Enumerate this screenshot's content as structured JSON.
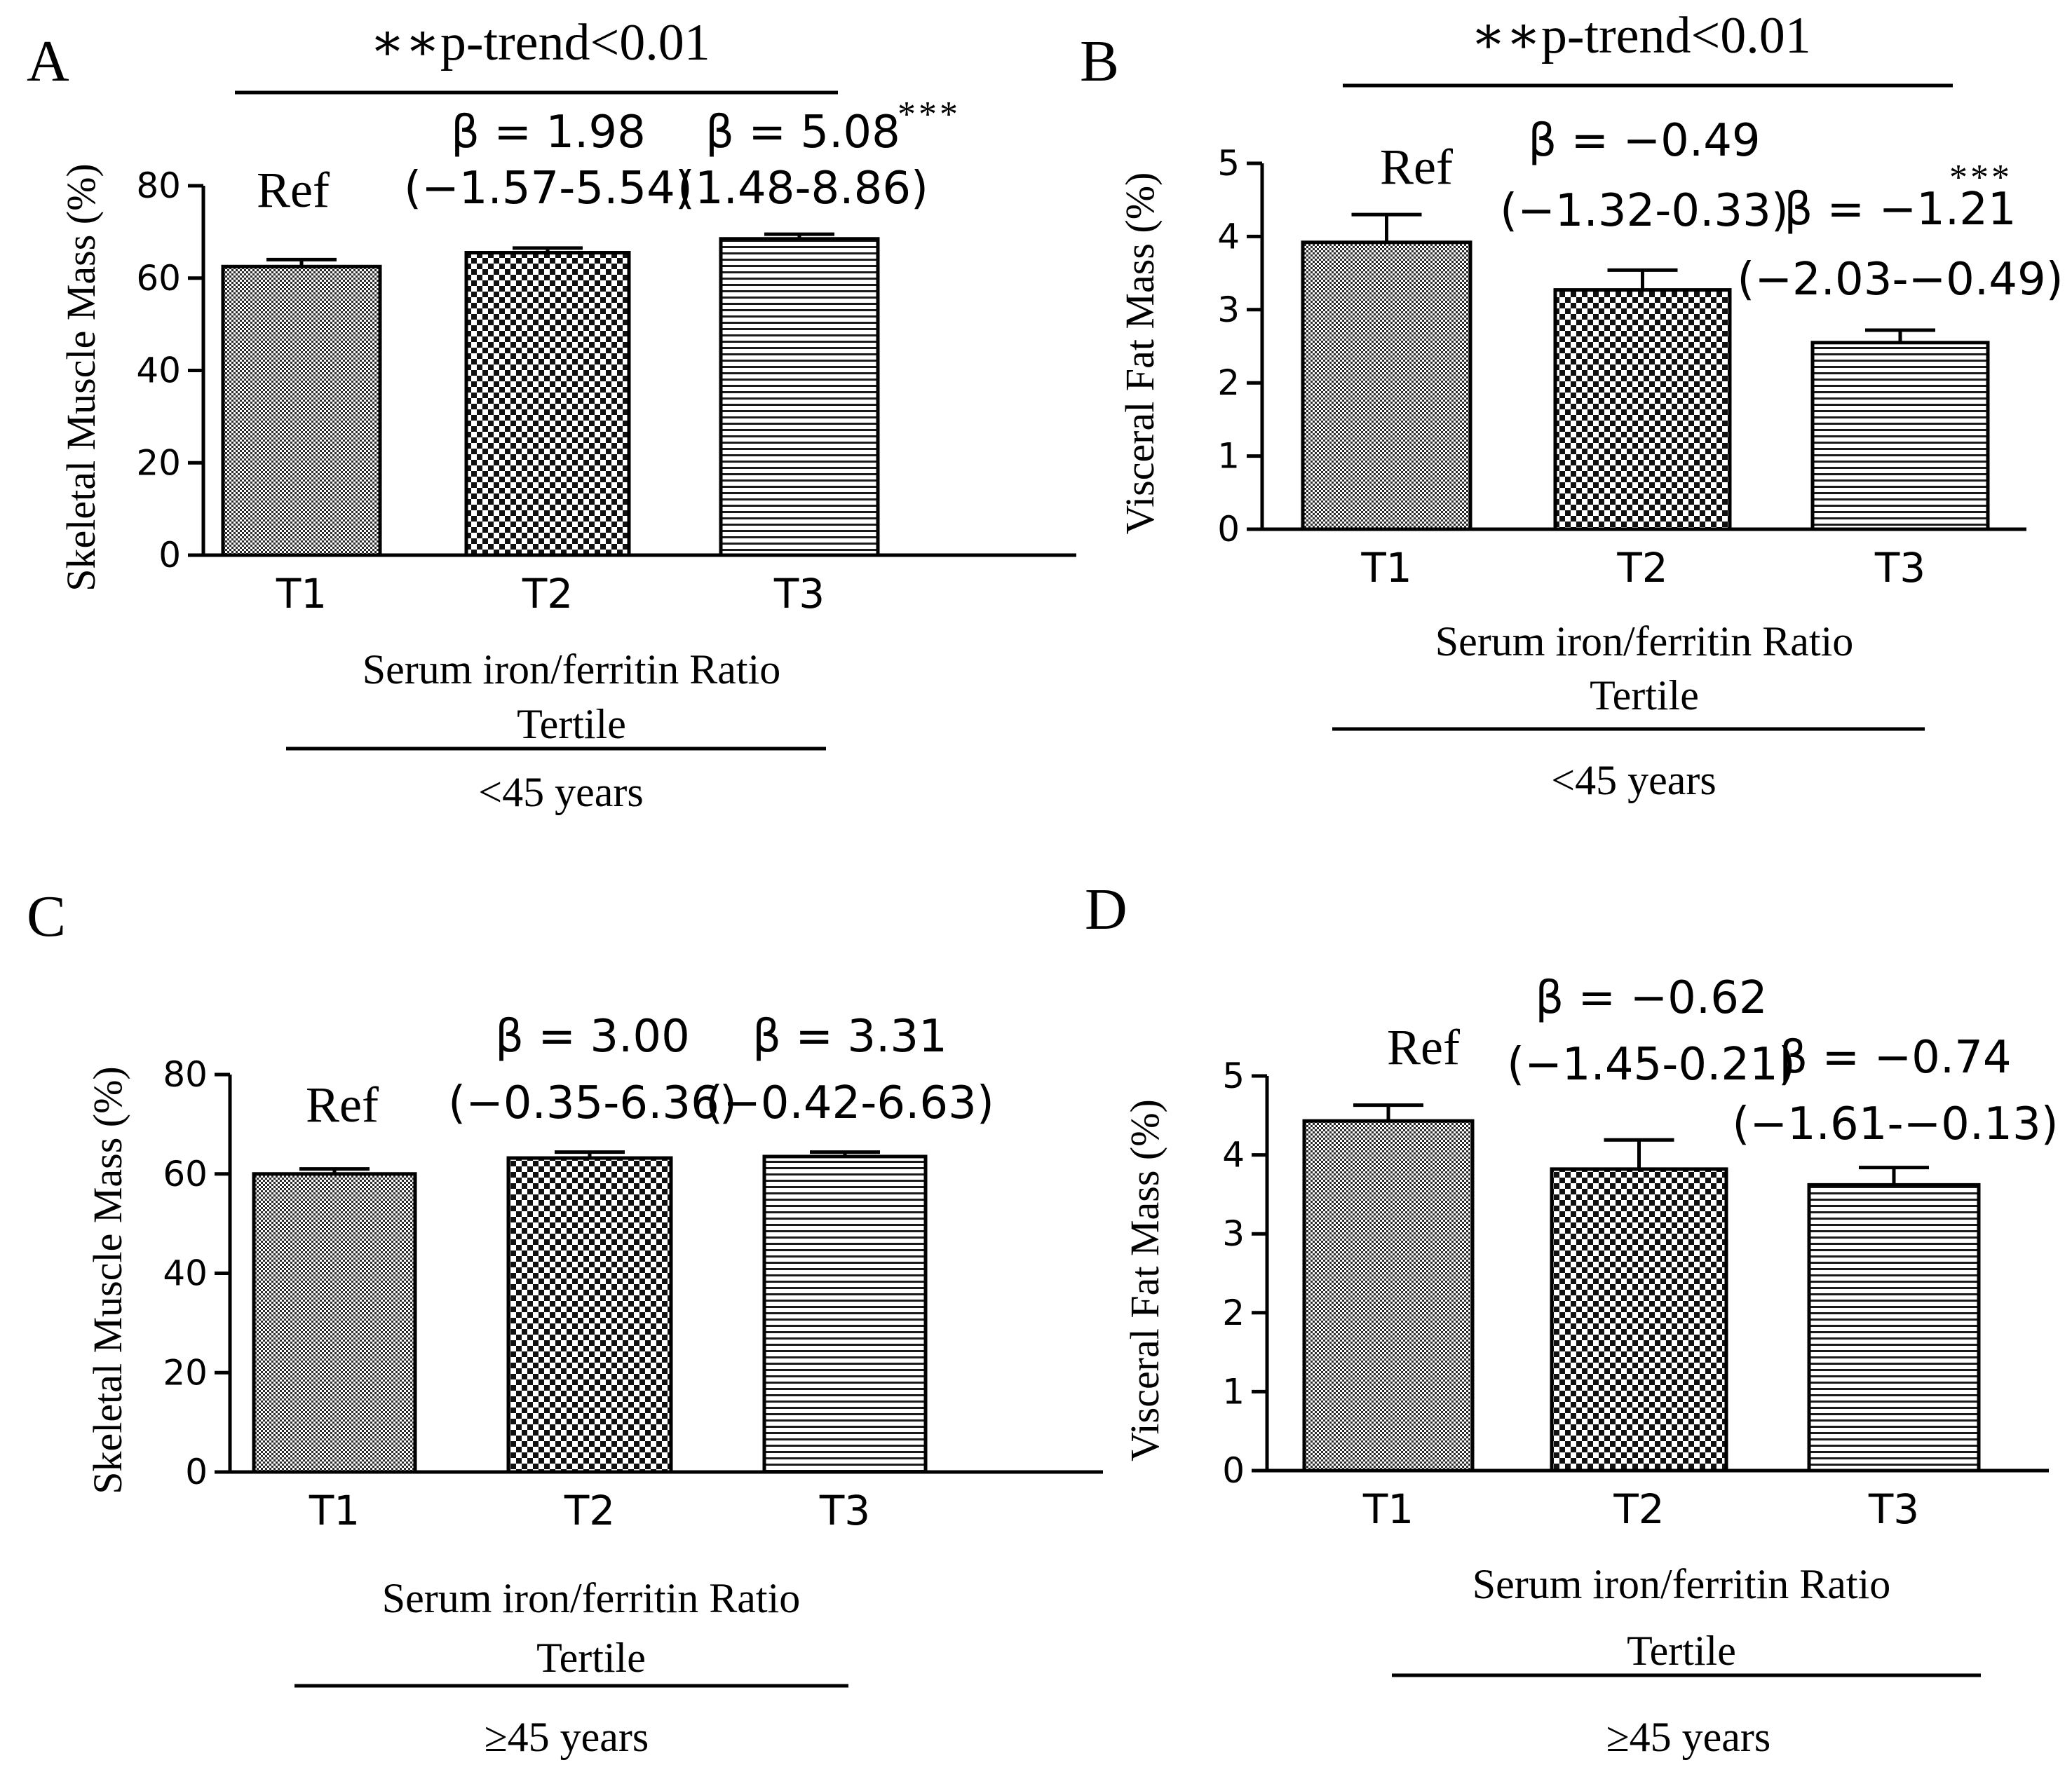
{
  "chart_data": [
    {
      "id": "A",
      "type": "bar",
      "panel_label": "A",
      "ylabel": "Skeletal Muscle Mass (%)",
      "ylim": [
        0,
        80
      ],
      "yticks": [
        "0",
        "20",
        "40",
        "60",
        "80"
      ],
      "categories": [
        "T1",
        "T2",
        "T3"
      ],
      "values": [
        62.5,
        65.5,
        68.5
      ],
      "errors": [
        1.5,
        1.0,
        1.0
      ],
      "patterns": [
        "dot",
        "check",
        "hline"
      ],
      "annotations": [
        {
          "lines": [
            "Ref"
          ],
          "font": "serif",
          "stars": ""
        },
        {
          "lines": [
            "β = 1.98",
            "(−1.57-5.54)"
          ],
          "font": "sans",
          "stars": ""
        },
        {
          "lines": [
            "β = 5.08",
            "(1.48-8.86)"
          ],
          "font": "sans",
          "stars": "***"
        }
      ],
      "trend": "∗∗p-trend<0.01",
      "xlabel": [
        "Serum iron/ferritin Ratio",
        "Tertile"
      ],
      "group": "<45 years"
    },
    {
      "id": "B",
      "type": "bar",
      "panel_label": "B",
      "ylabel": "Visceral Fat Mass (%)",
      "ylim": [
        0,
        5
      ],
      "yticks": [
        "0",
        "1",
        "2",
        "3",
        "4",
        "5"
      ],
      "categories": [
        "T1",
        "T2",
        "T3"
      ],
      "values": [
        3.92,
        3.27,
        2.55
      ],
      "errors": [
        0.38,
        0.27,
        0.17
      ],
      "patterns": [
        "dot",
        "check",
        "hline"
      ],
      "annotations": [
        {
          "lines": [
            "Ref"
          ],
          "font": "serif",
          "stars": ""
        },
        {
          "lines": [
            "β = −0.49",
            "(−1.32-0.33)"
          ],
          "font": "sans",
          "stars": ""
        },
        {
          "lines": [
            "β = −1.21",
            "(−2.03-−0.49)"
          ],
          "font": "sans",
          "stars": "***"
        }
      ],
      "trend": "∗∗p-trend<0.01",
      "xlabel": [
        "Serum iron/ferritin Ratio",
        "Tertile"
      ],
      "group": "<45 years"
    },
    {
      "id": "C",
      "type": "bar",
      "panel_label": "C",
      "ylabel": "Skeletal Muscle Mass (%)",
      "ylim": [
        0,
        80
      ],
      "yticks": [
        "0",
        "20",
        "40",
        "60",
        "80"
      ],
      "categories": [
        "T1",
        "T2",
        "T3"
      ],
      "values": [
        60.0,
        63.2,
        63.5
      ],
      "errors": [
        1.0,
        1.2,
        0.9
      ],
      "patterns": [
        "dot",
        "check",
        "hline"
      ],
      "annotations": [
        {
          "lines": [
            "Ref"
          ],
          "font": "serif",
          "stars": ""
        },
        {
          "lines": [
            "β = 3.00",
            "(−0.35-6.36)"
          ],
          "font": "sans",
          "stars": ""
        },
        {
          "lines": [
            "β = 3.31",
            "(−0.42-6.63)"
          ],
          "font": "sans",
          "stars": ""
        }
      ],
      "trend": "",
      "xlabel": [
        "Serum iron/ferritin Ratio",
        "Tertile"
      ],
      "group": "≥45 years"
    },
    {
      "id": "D",
      "type": "bar",
      "panel_label": "D",
      "ylabel": "Visceral Fat Mass (%)",
      "ylim": [
        0,
        5
      ],
      "yticks": [
        "0",
        "1",
        "2",
        "3",
        "4",
        "5"
      ],
      "categories": [
        "T1",
        "T2",
        "T3"
      ],
      "values": [
        4.43,
        3.82,
        3.62
      ],
      "errors": [
        0.2,
        0.37,
        0.22
      ],
      "patterns": [
        "dot",
        "check",
        "hline"
      ],
      "annotations": [
        {
          "lines": [
            "Ref"
          ],
          "font": "serif",
          "stars": ""
        },
        {
          "lines": [
            "β = −0.62",
            "(−1.45-0.21)"
          ],
          "font": "sans",
          "stars": ""
        },
        {
          "lines": [
            "β = −0.74",
            "(−1.61-−0.13)"
          ],
          "font": "sans",
          "stars": ""
        }
      ],
      "trend": "",
      "xlabel": [
        "Serum iron/ferritin Ratio",
        "Tertile"
      ],
      "group": "≥45 years"
    }
  ]
}
